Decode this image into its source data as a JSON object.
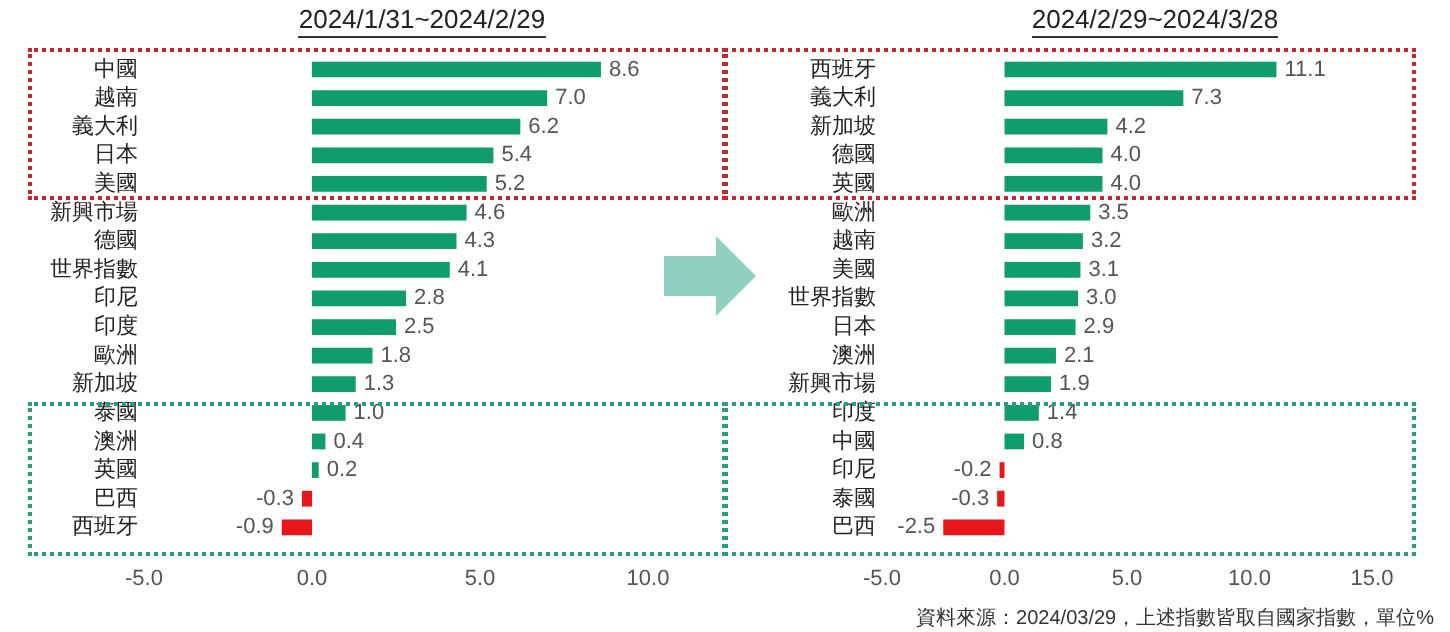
{
  "chart_data": [
    {
      "type": "bar",
      "orientation": "horizontal",
      "title": "2024/1/31~2024/2/29",
      "categories": [
        "中國",
        "越南",
        "義大利",
        "日本",
        "美國",
        "新興市場",
        "德國",
        "世界指數",
        "印尼",
        "印度",
        "歐洲",
        "新加坡",
        "泰國",
        "澳洲",
        "英國",
        "巴西",
        "西班牙"
      ],
      "values": [
        8.6,
        7.0,
        6.2,
        5.4,
        5.2,
        4.6,
        4.3,
        4.1,
        2.8,
        2.5,
        1.8,
        1.3,
        1.0,
        0.4,
        0.2,
        -0.3,
        -0.9
      ],
      "colors": [
        "#0f9d6b",
        "#0f9d6b",
        "#0f9d6b",
        "#0f9d6b",
        "#0f9d6b",
        "#0f9d6b",
        "#0f9d6b",
        "#0f9d6b",
        "#0f9d6b",
        "#0f9d6b",
        "#0f9d6b",
        "#0f9d6b",
        "#0f9d6b",
        "#0f9d6b",
        "#0f9d6b",
        "#e8151b",
        "#e8151b"
      ],
      "xlim": [
        -5,
        10
      ],
      "xticks": [
        {
          "value": -5,
          "label": "-5.0"
        },
        {
          "value": 0,
          "label": "0.0"
        },
        {
          "value": 5,
          "label": "5.0"
        },
        {
          "value": 10,
          "label": "10.0"
        }
      ],
      "value_labels": [
        "8.6",
        "7.0",
        "6.2",
        "5.4",
        "5.2",
        "4.6",
        "4.3",
        "4.1",
        "2.8",
        "2.5",
        "1.8",
        "1.3",
        "1.0",
        "0.4",
        "0.2",
        "-0.3",
        "-0.9"
      ]
    },
    {
      "type": "bar",
      "orientation": "horizontal",
      "title": "2024/2/29~2024/3/28",
      "categories": [
        "西班牙",
        "義大利",
        "新加坡",
        "德國",
        "英國",
        "歐洲",
        "越南",
        "美國",
        "世界指數",
        "日本",
        "澳洲",
        "新興市場",
        "印度",
        "中國",
        "印尼",
        "泰國",
        "巴西"
      ],
      "values": [
        11.1,
        7.3,
        4.2,
        4.0,
        4.0,
        3.5,
        3.2,
        3.1,
        3.0,
        2.9,
        2.1,
        1.9,
        1.4,
        0.8,
        -0.2,
        -0.3,
        -2.5
      ],
      "colors": [
        "#0f9d6b",
        "#0f9d6b",
        "#0f9d6b",
        "#0f9d6b",
        "#0f9d6b",
        "#0f9d6b",
        "#0f9d6b",
        "#0f9d6b",
        "#0f9d6b",
        "#0f9d6b",
        "#0f9d6b",
        "#0f9d6b",
        "#0f9d6b",
        "#0f9d6b",
        "#e8151b",
        "#e8151b",
        "#e8151b"
      ],
      "xlim": [
        -5,
        15
      ],
      "xticks": [
        {
          "value": -5,
          "label": "-5.0"
        },
        {
          "value": 0,
          "label": "0.0"
        },
        {
          "value": 5,
          "label": "5.0"
        },
        {
          "value": 10,
          "label": "10.0"
        },
        {
          "value": 15,
          "label": "15.0"
        }
      ],
      "value_labels": [
        "11.1",
        "7.3",
        "4.2",
        "4.0",
        "4.0",
        "3.5",
        "3.2",
        "3.1",
        "3.0",
        "2.9",
        "2.1",
        "1.9",
        "1.4",
        "0.8",
        "-0.2",
        "-0.3",
        "-2.5"
      ],
      "annotations": [
        "資料來源：2024/03/29，上述指數皆取自國家指數，單位%"
      ]
    }
  ]
}
